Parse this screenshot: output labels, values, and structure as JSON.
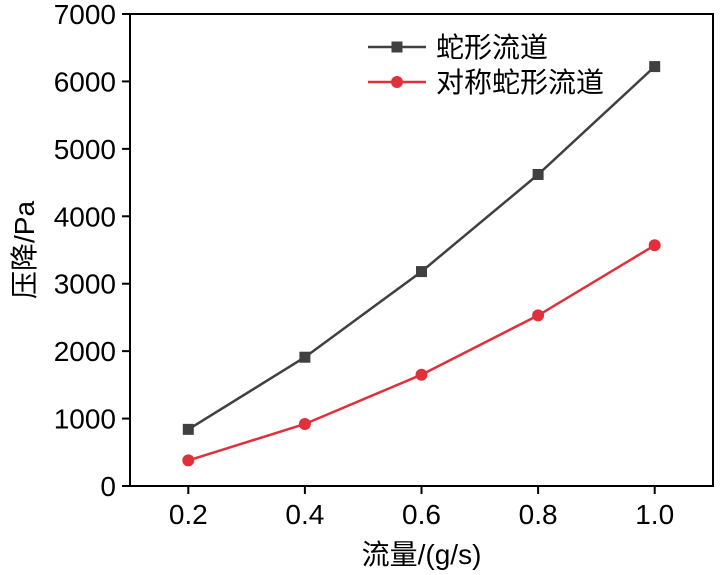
{
  "chart_data": {
    "type": "line",
    "xlabel": "流量/(g/s)",
    "ylabel": "压降/Pa",
    "x": [
      0.2,
      0.4,
      0.6,
      0.8,
      1.0
    ],
    "x_tick_labels": [
      "0.2",
      "0.4",
      "0.6",
      "0.8",
      "1.0"
    ],
    "y_ticks": [
      0,
      1000,
      2000,
      3000,
      4000,
      5000,
      6000,
      7000
    ],
    "y_tick_labels": [
      "0",
      "1000",
      "2000",
      "3000",
      "4000",
      "5000",
      "6000",
      "7000"
    ],
    "xlim": [
      0.1,
      1.1
    ],
    "ylim": [
      0,
      7000
    ],
    "grid": false,
    "legend_position": "top-right",
    "series": [
      {
        "name": "蛇形流道",
        "marker": "square",
        "color": "#404040",
        "values": [
          840,
          1910,
          3180,
          4620,
          6220
        ]
      },
      {
        "name": "对称蛇形流道",
        "marker": "circle",
        "color": "#e0303c",
        "values": [
          380,
          920,
          1650,
          2530,
          3570
        ]
      }
    ]
  }
}
